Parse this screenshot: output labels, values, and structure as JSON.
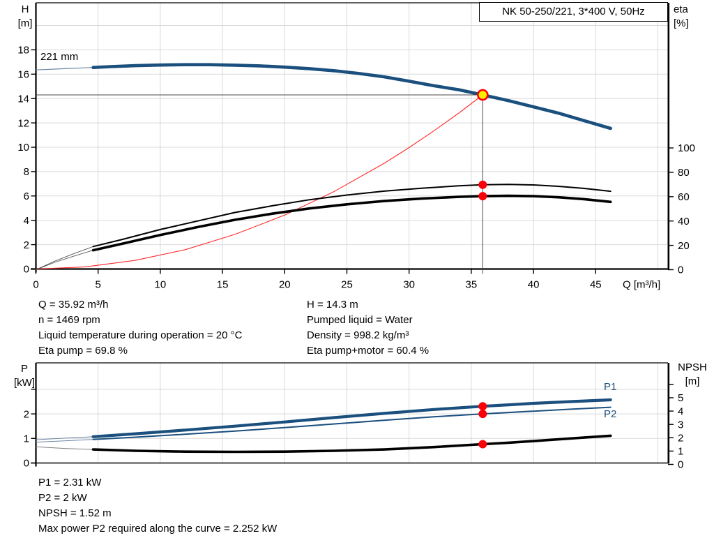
{
  "pump": {
    "name_plate": "NK 50-250/221, 3*400 V, 50Hz",
    "impeller_diameter": "221 mm",
    "p1_curve_label": "P1",
    "p2_curve_label": "P2"
  },
  "info_left": [
    "Q = 35.92 m³/h",
    "n = 1469 rpm",
    "Liquid temperature during operation = 20 °C",
    "Eta pump = 69.8 %"
  ],
  "info_right": [
    "H = 14.3 m",
    "Pumped liquid = Water",
    "Density = 998.2 kg/m³",
    "Eta pump+motor = 60.4 %"
  ],
  "info_bottom": [
    "P1 = 2.31 kW",
    "P2 = 2 kW",
    "NPSH = 1.52 m",
    "Max power P2 required along the curve = 2.252 kW"
  ],
  "colors": {
    "curve_blue": "#1a4f7e",
    "curve_black": "#000000",
    "system_curve_red": "#ff2a2a",
    "marker_red": "#fb0007",
    "duty_fill_yellow": "#ffed00",
    "grid": "#d9d9d9",
    "guide_gray": "#4a4a4a",
    "lead_blue": "#6b85a5",
    "lead_gray": "#808080",
    "frame": "#000000",
    "blue_label": "#1a4f7e"
  },
  "chart_data": [
    {
      "id": "hq-eta-chart",
      "type": "line",
      "x_axis": {
        "title": "Q [m³/h]",
        "ticks": [
          0,
          5,
          10,
          15,
          20,
          25,
          30,
          35,
          40,
          45
        ],
        "grid": [
          5,
          10,
          15,
          20,
          25,
          30,
          35,
          40,
          45,
          50
        ],
        "range": [
          0,
          50.8
        ]
      },
      "y_left": {
        "title": [
          "H",
          "[m]"
        ],
        "ticks": [
          0,
          2,
          4,
          6,
          8,
          10,
          12,
          14,
          16,
          18
        ],
        "grid": [
          2,
          4,
          6,
          8,
          10,
          12,
          14,
          16,
          18,
          20
        ],
        "range": [
          0,
          21.8
        ]
      },
      "y_right": {
        "title": [
          "eta",
          "[%]"
        ],
        "ticks": [
          0,
          20,
          40,
          60,
          80,
          100
        ],
        "ticks_unlabeled": [],
        "range": [
          0,
          109
        ]
      },
      "duty_point": {
        "Q": 35.92,
        "H": 14.3,
        "eta_pump": 69.8,
        "eta_pump_motor": 60.4
      },
      "series": [
        {
          "id": "head-curve-lead",
          "axis": "h",
          "color": "#6b85a5",
          "width": 1.2,
          "points": [
            [
              0,
              16.35
            ],
            [
              2.3,
              16.45
            ],
            [
              4.6,
              16.55
            ]
          ]
        },
        {
          "id": "system-curve",
          "axis": "h",
          "color": "#ff2a2a",
          "width": 1.1,
          "points": [
            [
              0,
              0
            ],
            [
              4,
              0.18
            ],
            [
              8,
              0.71
            ],
            [
              12,
              1.59
            ],
            [
              16,
              2.84
            ],
            [
              20,
              4.43
            ],
            [
              24,
              6.38
            ],
            [
              28,
              8.68
            ],
            [
              30,
              9.97
            ],
            [
              32,
              11.35
            ],
            [
              34,
              12.81
            ],
            [
              35.92,
              14.3
            ]
          ]
        },
        {
          "id": "eta-pump-lead",
          "axis": "eta",
          "color": "#555555",
          "width": 0.9,
          "points": [
            [
              0,
              0
            ],
            [
              1.5,
              7
            ],
            [
              3,
              13
            ],
            [
              4.6,
              19
            ]
          ]
        },
        {
          "id": "eta-pump-motor-lead",
          "axis": "eta",
          "color": "#555555",
          "width": 0.9,
          "points": [
            [
              0,
              0
            ],
            [
              1.5,
              6
            ],
            [
              3,
              11
            ],
            [
              4.6,
              16
            ]
          ]
        },
        {
          "id": "head-curve",
          "axis": "h",
          "color": "#1a4f7e",
          "width": 4.6,
          "points": [
            [
              4.6,
              16.55
            ],
            [
              6,
              16.62
            ],
            [
              8,
              16.7
            ],
            [
              10,
              16.75
            ],
            [
              12,
              16.78
            ],
            [
              14,
              16.78
            ],
            [
              16,
              16.74
            ],
            [
              18,
              16.68
            ],
            [
              20,
              16.58
            ],
            [
              22,
              16.45
            ],
            [
              24,
              16.28
            ],
            [
              26,
              16.05
            ],
            [
              28,
              15.78
            ],
            [
              30,
              15.42
            ],
            [
              32,
              15.05
            ],
            [
              34,
              14.72
            ],
            [
              35.92,
              14.3
            ],
            [
              38,
              13.82
            ],
            [
              40,
              13.32
            ],
            [
              42,
              12.8
            ],
            [
              44,
              12.2
            ],
            [
              46.2,
              11.55
            ]
          ]
        },
        {
          "id": "eta-pump-curve",
          "axis": "eta",
          "color": "#000000",
          "width": 2,
          "points": [
            [
              4.6,
              19
            ],
            [
              7,
              25
            ],
            [
              10,
              33
            ],
            [
              13,
              40
            ],
            [
              16,
              47
            ],
            [
              19,
              52.5
            ],
            [
              22,
              57.5
            ],
            [
              25,
              61.3
            ],
            [
              28,
              64.5
            ],
            [
              31,
              66.9
            ],
            [
              34,
              68.9
            ],
            [
              35.92,
              69.8
            ],
            [
              38,
              70.1
            ],
            [
              40,
              69.6
            ],
            [
              42,
              68.5
            ],
            [
              44,
              66.8
            ],
            [
              46.2,
              64.4
            ]
          ]
        },
        {
          "id": "eta-pump-motor-curve",
          "axis": "eta",
          "color": "#000000",
          "width": 3.6,
          "points": [
            [
              4.6,
              16
            ],
            [
              7,
              21.5
            ],
            [
              10,
              28.5
            ],
            [
              13,
              35
            ],
            [
              16,
              41
            ],
            [
              19,
              46
            ],
            [
              22,
              50.3
            ],
            [
              25,
              53.7
            ],
            [
              28,
              56.4
            ],
            [
              31,
              58.4
            ],
            [
              34,
              59.8
            ],
            [
              35.92,
              60.4
            ],
            [
              38,
              60.7
            ],
            [
              40,
              60.4
            ],
            [
              42,
              59.5
            ],
            [
              44,
              58
            ],
            [
              46.2,
              55.7
            ]
          ]
        }
      ],
      "guides": [
        {
          "id": "duty-hline",
          "type": "h",
          "axis": "h",
          "q": 35.92,
          "v": 14.3
        },
        {
          "id": "duty-vline",
          "type": "v",
          "axis": "h",
          "q": 35.92,
          "v": 14.3
        }
      ],
      "markers": [
        {
          "id": "eta-pump-point",
          "axis": "eta",
          "q": 35.92,
          "v": 69.8,
          "r": 6,
          "fill": "#fb0007",
          "stroke": "none",
          "sw": 0
        },
        {
          "id": "eta-pump-motor-point",
          "axis": "eta",
          "q": 35.92,
          "v": 60.4,
          "r": 6,
          "fill": "#fb0007",
          "stroke": "none",
          "sw": 0
        },
        {
          "id": "duty-point",
          "axis": "h",
          "q": 35.92,
          "v": 14.3,
          "r": 7,
          "fill": "#ffed00",
          "stroke": "#fb0007",
          "sw": 2.6
        }
      ]
    },
    {
      "id": "power-npsh-chart",
      "type": "line",
      "x_axis": {
        "title": "",
        "ticks": [],
        "grid": [
          5,
          10,
          15,
          20,
          25,
          30,
          35,
          40,
          45,
          50
        ],
        "range": [
          0,
          50.8
        ]
      },
      "y_left": {
        "title": [
          "P",
          "[kW]"
        ],
        "ticks": [
          0,
          1,
          2
        ],
        "ticks_unlabeled": [
          3
        ],
        "grid": [
          1,
          2,
          3
        ],
        "range": [
          0,
          4.1
        ]
      },
      "y_right": {
        "title": [
          "NPSH",
          "[m]"
        ],
        "ticks": [
          0,
          1,
          2,
          3,
          4,
          5
        ],
        "ticks_unlabeled": [
          6
        ],
        "range": [
          0,
          7.6
        ]
      },
      "duty_point": {
        "Q": 35.92,
        "P1": 2.31,
        "P2": 2,
        "NPSH": 1.52
      },
      "series": [
        {
          "id": "p1-lead",
          "axis": "p",
          "color": "#6b85a5",
          "width": 1,
          "points": [
            [
              0,
              0.95
            ],
            [
              2.3,
              1.01
            ],
            [
              4.6,
              1.07
            ]
          ]
        },
        {
          "id": "p2-lead",
          "axis": "p",
          "color": "#6b85a5",
          "width": 1,
          "points": [
            [
              0,
              0.85
            ],
            [
              2.3,
              0.9
            ],
            [
              4.6,
              0.96
            ]
          ]
        },
        {
          "id": "npsh-lead",
          "axis": "npsh",
          "color": "#808080",
          "width": 1,
          "points": [
            [
              0,
              1.32
            ],
            [
              2.3,
              1.2
            ],
            [
              4.6,
              1.12
            ]
          ]
        },
        {
          "id": "p1-curve",
          "axis": "p",
          "color": "#1a4f7e",
          "width": 4.2,
          "points": [
            [
              4.6,
              1.07
            ],
            [
              8,
              1.19
            ],
            [
              12,
              1.34
            ],
            [
              16,
              1.5
            ],
            [
              20,
              1.67
            ],
            [
              24,
              1.85
            ],
            [
              28,
              2.02
            ],
            [
              32,
              2.18
            ],
            [
              35.92,
              2.31
            ],
            [
              38,
              2.37
            ],
            [
              40,
              2.43
            ],
            [
              43,
              2.5
            ],
            [
              46.2,
              2.57
            ]
          ]
        },
        {
          "id": "p2-curve",
          "axis": "p",
          "color": "#1a4f7e",
          "width": 2,
          "points": [
            [
              4.6,
              0.96
            ],
            [
              8,
              1.05
            ],
            [
              12,
              1.17
            ],
            [
              16,
              1.3
            ],
            [
              20,
              1.44
            ],
            [
              24,
              1.59
            ],
            [
              28,
              1.74
            ],
            [
              32,
              1.88
            ],
            [
              35.92,
              2.0
            ],
            [
              40,
              2.11
            ],
            [
              43,
              2.19
            ],
            [
              46.2,
              2.27
            ]
          ]
        },
        {
          "id": "npsh-curve",
          "axis": "npsh",
          "color": "#000000",
          "width": 3.6,
          "points": [
            [
              4.6,
              1.12
            ],
            [
              8,
              1.02
            ],
            [
              12,
              0.96
            ],
            [
              16,
              0.94
            ],
            [
              20,
              0.96
            ],
            [
              24,
              1.02
            ],
            [
              28,
              1.12
            ],
            [
              32,
              1.3
            ],
            [
              35.92,
              1.52
            ],
            [
              38,
              1.63
            ],
            [
              40,
              1.75
            ],
            [
              43,
              1.95
            ],
            [
              46.2,
              2.15
            ]
          ]
        }
      ],
      "guides": [],
      "markers": [
        {
          "id": "p1-point",
          "axis": "p",
          "q": 35.92,
          "v": 2.31,
          "r": 6,
          "fill": "#fb0007",
          "stroke": "none",
          "sw": 0
        },
        {
          "id": "p2-point",
          "axis": "p",
          "q": 35.92,
          "v": 2.0,
          "r": 6,
          "fill": "#fb0007",
          "stroke": "none",
          "sw": 0
        },
        {
          "id": "npsh-point",
          "axis": "npsh",
          "q": 35.92,
          "v": 1.52,
          "r": 6,
          "fill": "#fb0007",
          "stroke": "none",
          "sw": 0
        }
      ]
    }
  ]
}
